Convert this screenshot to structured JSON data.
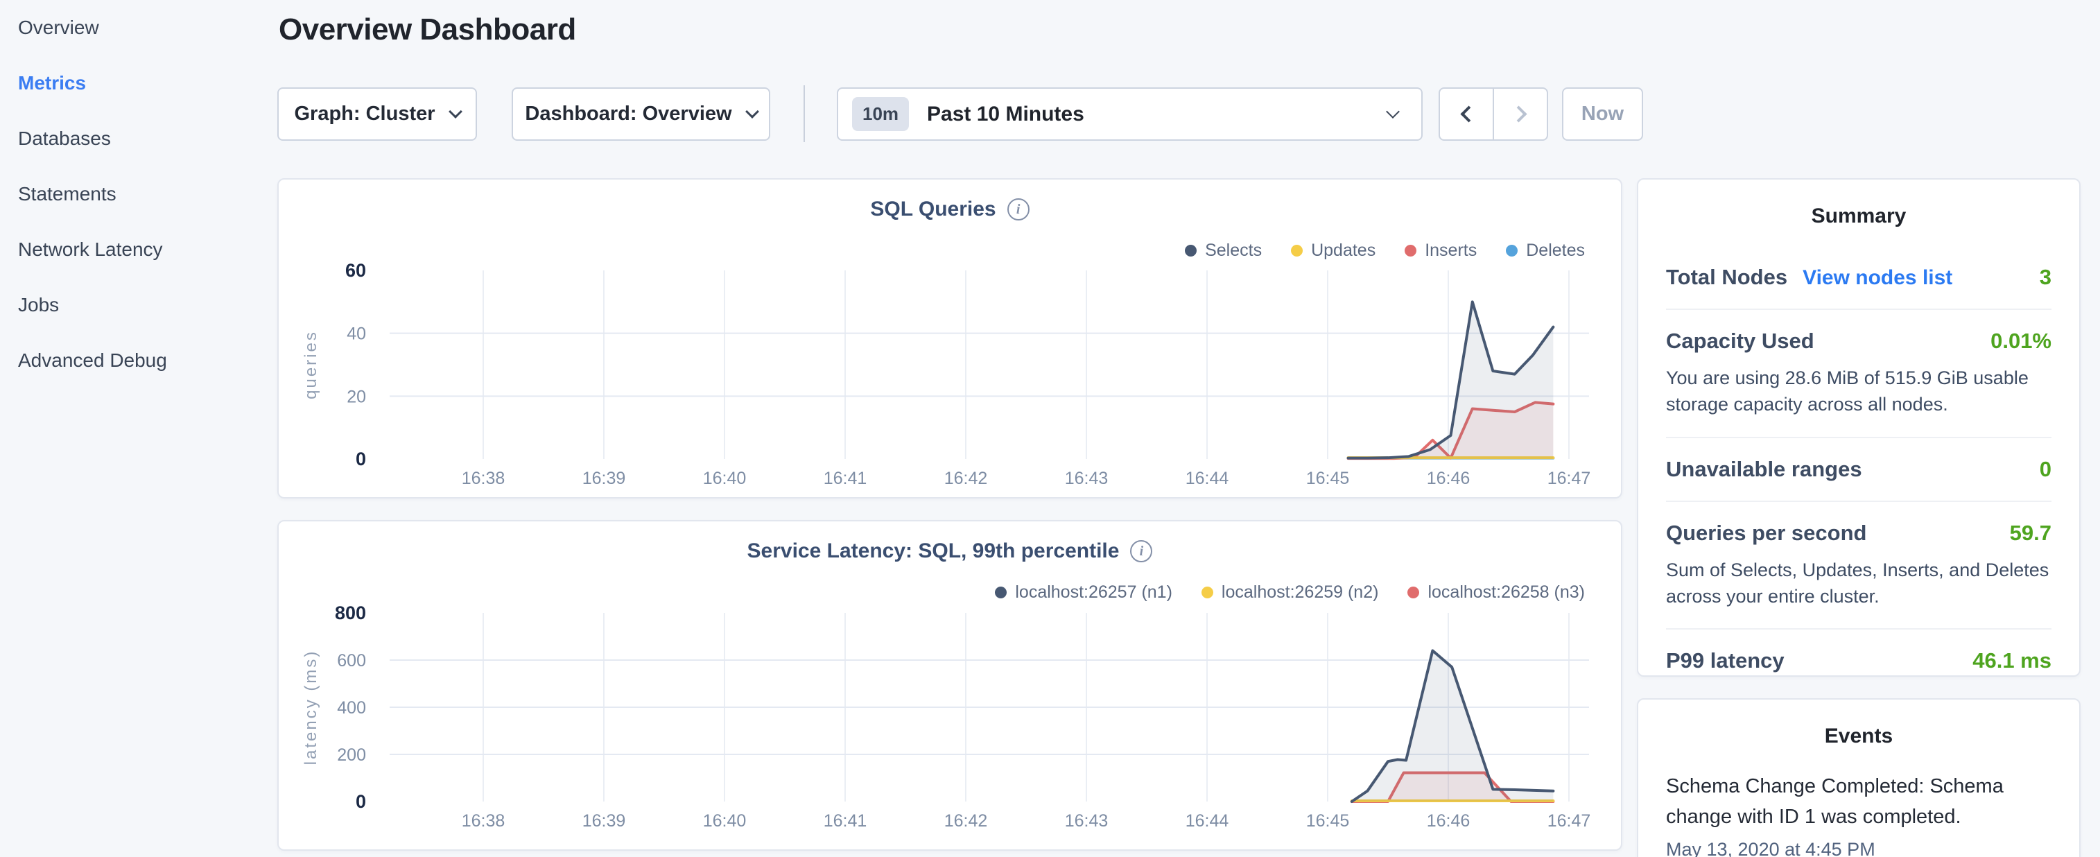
{
  "sidebar": {
    "items": [
      {
        "label": "Overview",
        "active": false
      },
      {
        "label": "Metrics",
        "active": true
      },
      {
        "label": "Databases",
        "active": false
      },
      {
        "label": "Statements",
        "active": false
      },
      {
        "label": "Network Latency",
        "active": false
      },
      {
        "label": "Jobs",
        "active": false
      },
      {
        "label": "Advanced Debug",
        "active": false
      }
    ]
  },
  "header": {
    "title": "Overview Dashboard"
  },
  "controls": {
    "graph_label": "Graph: Cluster",
    "dashboard_label": "Dashboard: Overview",
    "time_badge": "10m",
    "time_label": "Past 10 Minutes",
    "now_label": "Now"
  },
  "summary": {
    "title": "Summary",
    "rows": [
      {
        "label": "Total Nodes",
        "link": "View nodes list",
        "value": "3"
      },
      {
        "label": "Capacity Used",
        "value": "0.01%",
        "desc": "You are using 28.6 MiB of 515.9 GiB usable storage capacity across all nodes."
      },
      {
        "label": "Unavailable ranges",
        "value": "0"
      },
      {
        "label": "Queries per second",
        "value": "59.7",
        "desc": "Sum of Selects, Updates, Inserts, and Deletes across your entire cluster."
      },
      {
        "label": "P99 latency",
        "value": "46.1 ms"
      }
    ]
  },
  "events": {
    "title": "Events",
    "items": [
      {
        "text": "Schema Change Completed: Schema change with ID 1 was completed.",
        "time": "May 13, 2020 at 4:45 PM"
      }
    ]
  },
  "chart_data": [
    {
      "type": "line",
      "title": "SQL Queries",
      "ylabel": "queries",
      "ylim": [
        0,
        60
      ],
      "yticks": [
        0,
        20,
        40,
        60
      ],
      "x_ticks": [
        "16:38",
        "16:39",
        "16:40",
        "16:41",
        "16:42",
        "16:43",
        "16:44",
        "16:45",
        "16:46",
        "16:47"
      ],
      "x_unit": "minutes after 16:38",
      "grid": true,
      "legend_position": "top-right",
      "series": [
        {
          "name": "Selects",
          "color": "#475872",
          "x": [
            7.17,
            7.33,
            7.5,
            7.67,
            7.85,
            8.02,
            8.2,
            8.37,
            8.55,
            8.7,
            8.87
          ],
          "y": [
            0.3,
            0.3,
            0.4,
            0.8,
            3,
            7.5,
            50,
            28,
            27,
            33,
            42
          ]
        },
        {
          "name": "Updates",
          "color": "#f5cd47",
          "x": [
            7.17,
            8.87
          ],
          "y": [
            0.4,
            0.4
          ]
        },
        {
          "name": "Inserts",
          "color": "#e06c6c",
          "x": [
            7.17,
            7.55,
            7.72,
            7.87,
            8.02,
            8.2,
            8.37,
            8.55,
            8.72,
            8.87
          ],
          "y": [
            0.2,
            0.2,
            0.5,
            6,
            0.3,
            16,
            15.5,
            15,
            18,
            17.5
          ]
        },
        {
          "name": "Deletes",
          "color": "#55a3dc",
          "x": [
            7.17,
            8.87
          ],
          "y": [
            0.3,
            0.3
          ]
        }
      ]
    },
    {
      "type": "line",
      "title": "Service Latency: SQL, 99th percentile",
      "ylabel": "latency (ms)",
      "ylim": [
        0,
        800
      ],
      "yticks": [
        0,
        200,
        400,
        600,
        800
      ],
      "x_ticks": [
        "16:38",
        "16:39",
        "16:40",
        "16:41",
        "16:42",
        "16:43",
        "16:44",
        "16:45",
        "16:46",
        "16:47"
      ],
      "x_unit": "minutes after 16:38",
      "grid": true,
      "legend_position": "top-right",
      "series": [
        {
          "name": "localhost:26257 (n1)",
          "color": "#475872",
          "x": [
            7.2,
            7.33,
            7.5,
            7.58,
            7.65,
            7.87,
            8.03,
            8.37,
            8.55,
            8.87
          ],
          "y": [
            0,
            45,
            170,
            178,
            175,
            640,
            570,
            52,
            50,
            45
          ]
        },
        {
          "name": "localhost:26259 (n2)",
          "color": "#f5cd47",
          "x": [
            7.2,
            8.87
          ],
          "y": [
            3,
            3
          ]
        },
        {
          "name": "localhost:26258 (n3)",
          "color": "#e06c6c",
          "x": [
            7.2,
            7.5,
            7.63,
            8.3,
            8.52,
            8.87
          ],
          "y": [
            0,
            0,
            122,
            122,
            0,
            0
          ]
        }
      ]
    }
  ]
}
